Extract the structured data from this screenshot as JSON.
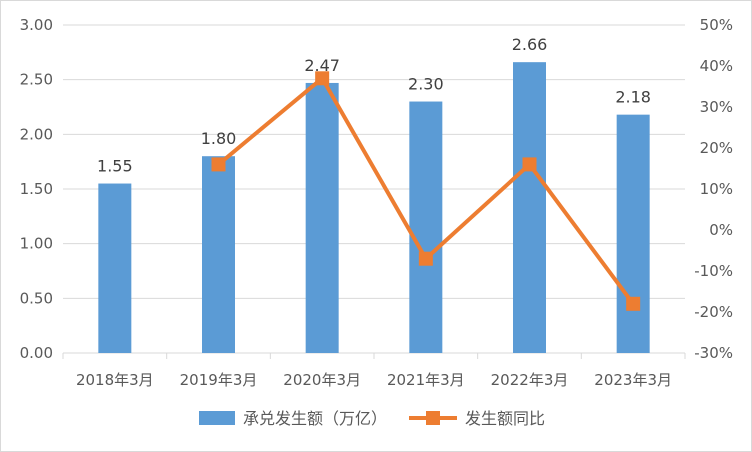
{
  "chart_data": {
    "type": "bar",
    "categories": [
      "2018年3月",
      "2019年3月",
      "2020年3月",
      "2021年3月",
      "2022年3月",
      "2023年3月"
    ],
    "series": [
      {
        "name": "承兑发生额（万亿）",
        "chart_type": "bar",
        "axis": "left",
        "values": [
          1.55,
          1.8,
          2.47,
          2.3,
          2.66,
          2.18
        ],
        "data_labels": [
          "1.55",
          "1.80",
          "2.47",
          "2.30",
          "2.66",
          "2.18"
        ],
        "color": "#5b9bd5"
      },
      {
        "name": "发生额同比",
        "chart_type": "line",
        "axis": "right",
        "values": [
          null,
          16,
          37,
          -7,
          16,
          -18
        ],
        "color": "#ed7d31"
      }
    ],
    "y_left": {
      "range": [
        0,
        3
      ],
      "ticks": [
        0,
        0.5,
        1.0,
        1.5,
        2.0,
        2.5,
        3.0
      ],
      "tick_labels": [
        "0.00",
        "0.50",
        "1.00",
        "1.50",
        "2.00",
        "2.50",
        "3.00"
      ]
    },
    "y_right": {
      "range": [
        -30,
        50
      ],
      "ticks": [
        -30,
        -20,
        -10,
        0,
        10,
        20,
        30,
        40,
        50
      ],
      "tick_labels": [
        "-30%",
        "-20%",
        "-10%",
        "0%",
        "10%",
        "20%",
        "30%",
        "40%",
        "50%"
      ]
    },
    "grid": true,
    "legend": "bottom",
    "colors": {
      "grid": "#d9d9d9",
      "axis_text": "#595959"
    }
  }
}
